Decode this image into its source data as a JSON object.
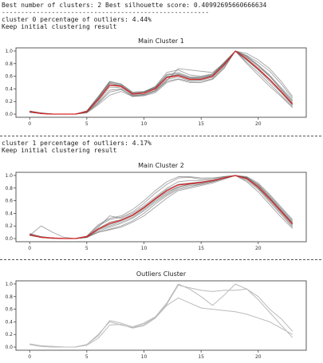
{
  "output": {
    "line1": "Best number of clusters: 2 Best silhouette score: 0.40992695660666634",
    "line2": "------------------------------------------------------",
    "line3": "cluster 0 percentage of outliers: 4.44%",
    "line4": "Keep initial clustering result",
    "line5": "cluster 1 percentage of outliers: 4.17%",
    "line6": "Keep initial clustering result"
  },
  "colors": {
    "member_line": "#555555",
    "mean_line": "#d62728",
    "outlier_line": "#bbbbbb",
    "axis": "#333333"
  },
  "chart_data": [
    {
      "type": "line",
      "title": "Main Cluster 1",
      "x": [
        0,
        1,
        2,
        3,
        4,
        5,
        6,
        7,
        8,
        9,
        10,
        11,
        12,
        13,
        14,
        15,
        16,
        17,
        18,
        19,
        20,
        21,
        22,
        23
      ],
      "xticks": [
        0,
        5,
        10,
        15,
        20
      ],
      "yticks": [
        "0.0",
        "0.2",
        "0.4",
        "0.6",
        "0.8",
        "1.0"
      ],
      "xlim": [
        -1.2,
        24.2
      ],
      "ylim": [
        -0.05,
        1.05
      ],
      "series": [
        {
          "role": "member",
          "values": [
            0.04,
            0.01,
            0.0,
            0.0,
            0.0,
            0.05,
            0.28,
            0.52,
            0.48,
            0.35,
            0.36,
            0.43,
            0.62,
            0.64,
            0.58,
            0.58,
            0.62,
            0.8,
            1.0,
            0.9,
            0.75,
            0.6,
            0.4,
            0.2
          ]
        },
        {
          "role": "member",
          "values": [
            0.03,
            0.01,
            0.0,
            0.0,
            0.0,
            0.03,
            0.2,
            0.43,
            0.42,
            0.3,
            0.31,
            0.38,
            0.55,
            0.59,
            0.53,
            0.54,
            0.58,
            0.76,
            1.0,
            0.82,
            0.66,
            0.48,
            0.3,
            0.12
          ]
        },
        {
          "role": "member",
          "values": [
            0.05,
            0.02,
            0.0,
            0.0,
            0.0,
            0.04,
            0.25,
            0.5,
            0.44,
            0.32,
            0.34,
            0.42,
            0.6,
            0.62,
            0.56,
            0.56,
            0.61,
            0.79,
            1.0,
            0.92,
            0.78,
            0.62,
            0.42,
            0.22
          ]
        },
        {
          "role": "member",
          "values": [
            0.04,
            0.01,
            0.0,
            0.0,
            0.0,
            0.03,
            0.18,
            0.38,
            0.4,
            0.28,
            0.3,
            0.36,
            0.52,
            0.56,
            0.52,
            0.52,
            0.56,
            0.74,
            1.0,
            0.8,
            0.62,
            0.44,
            0.28,
            0.1
          ]
        },
        {
          "role": "member",
          "values": [
            0.03,
            0.01,
            0.0,
            0.0,
            0.0,
            0.04,
            0.22,
            0.46,
            0.44,
            0.31,
            0.33,
            0.4,
            0.58,
            0.61,
            0.55,
            0.55,
            0.6,
            0.78,
            1.0,
            0.88,
            0.72,
            0.55,
            0.36,
            0.16
          ]
        },
        {
          "role": "member",
          "values": [
            0.04,
            0.02,
            0.0,
            0.0,
            0.0,
            0.05,
            0.26,
            0.49,
            0.46,
            0.33,
            0.35,
            0.44,
            0.66,
            0.7,
            0.62,
            0.6,
            0.64,
            0.82,
            1.0,
            0.93,
            0.82,
            0.68,
            0.48,
            0.25
          ]
        },
        {
          "role": "member",
          "values": [
            0.03,
            0.01,
            0.0,
            0.0,
            0.0,
            0.02,
            0.15,
            0.3,
            0.36,
            0.28,
            0.29,
            0.34,
            0.5,
            0.55,
            0.5,
            0.5,
            0.55,
            0.72,
            1.0,
            0.85,
            0.7,
            0.52,
            0.34,
            0.14
          ]
        },
        {
          "role": "member",
          "values": [
            0.04,
            0.01,
            0.0,
            0.0,
            0.0,
            0.04,
            0.24,
            0.47,
            0.45,
            0.32,
            0.33,
            0.41,
            0.59,
            0.63,
            0.57,
            0.57,
            0.61,
            0.78,
            1.0,
            0.86,
            0.7,
            0.54,
            0.35,
            0.15
          ]
        },
        {
          "role": "member",
          "values": [
            0.05,
            0.01,
            0.0,
            0.0,
            0.0,
            0.05,
            0.27,
            0.51,
            0.47,
            0.34,
            0.35,
            0.42,
            0.63,
            0.66,
            0.59,
            0.59,
            0.63,
            0.81,
            1.0,
            0.91,
            0.77,
            0.6,
            0.39,
            0.18
          ]
        },
        {
          "role": "member",
          "values": [
            0.03,
            0.01,
            0.0,
            0.0,
            0.0,
            0.03,
            0.17,
            0.35,
            0.39,
            0.29,
            0.31,
            0.37,
            0.53,
            0.72,
            0.7,
            0.68,
            0.66,
            0.8,
            1.0,
            0.96,
            0.86,
            0.72,
            0.52,
            0.28
          ]
        },
        {
          "role": "mean",
          "values": [
            0.04,
            0.01,
            0.0,
            0.0,
            0.0,
            0.04,
            0.23,
            0.46,
            0.44,
            0.32,
            0.33,
            0.4,
            0.58,
            0.61,
            0.55,
            0.55,
            0.6,
            0.78,
            1.0,
            0.87,
            0.72,
            0.55,
            0.36,
            0.16
          ]
        }
      ]
    },
    {
      "type": "line",
      "title": "Main Cluster 2",
      "x": [
        0,
        1,
        2,
        3,
        4,
        5,
        6,
        7,
        8,
        9,
        10,
        11,
        12,
        13,
        14,
        15,
        16,
        17,
        18,
        19,
        20,
        21,
        22,
        23
      ],
      "xticks": [
        0,
        5,
        10,
        15,
        20
      ],
      "yticks": [
        "0.0",
        "0.2",
        "0.4",
        "0.6",
        "0.8",
        "1.0"
      ],
      "xlim": [
        -1.2,
        24.2
      ],
      "ylim": [
        -0.05,
        1.05
      ],
      "series": [
        {
          "role": "member",
          "values": [
            0.06,
            0.02,
            0.01,
            0.0,
            0.0,
            0.03,
            0.15,
            0.22,
            0.28,
            0.36,
            0.48,
            0.62,
            0.74,
            0.82,
            0.86,
            0.88,
            0.92,
            0.96,
            1.0,
            0.97,
            0.85,
            0.65,
            0.45,
            0.25
          ]
        },
        {
          "role": "member",
          "values": [
            0.08,
            0.03,
            0.01,
            0.0,
            0.0,
            0.02,
            0.12,
            0.18,
            0.24,
            0.32,
            0.44,
            0.58,
            0.7,
            0.8,
            0.84,
            0.86,
            0.9,
            0.95,
            1.0,
            0.95,
            0.8,
            0.6,
            0.4,
            0.2
          ]
        },
        {
          "role": "member",
          "values": [
            0.05,
            0.2,
            0.1,
            0.02,
            0.0,
            0.02,
            0.1,
            0.15,
            0.2,
            0.28,
            0.4,
            0.55,
            0.68,
            0.78,
            0.82,
            0.86,
            0.9,
            0.96,
            1.0,
            0.96,
            0.84,
            0.66,
            0.46,
            0.26
          ]
        },
        {
          "role": "member",
          "values": [
            0.07,
            0.02,
            0.01,
            0.0,
            0.0,
            0.04,
            0.2,
            0.3,
            0.34,
            0.42,
            0.56,
            0.72,
            0.86,
            0.96,
            0.97,
            0.94,
            0.95,
            0.98,
            1.0,
            0.92,
            0.78,
            0.58,
            0.38,
            0.18
          ]
        },
        {
          "role": "member",
          "values": [
            0.06,
            0.03,
            0.01,
            0.0,
            0.0,
            0.03,
            0.18,
            0.36,
            0.32,
            0.4,
            0.52,
            0.66,
            0.8,
            0.9,
            0.92,
            0.92,
            0.93,
            0.97,
            1.0,
            0.94,
            0.8,
            0.62,
            0.42,
            0.22
          ]
        },
        {
          "role": "member",
          "values": [
            0.05,
            0.02,
            0.0,
            0.0,
            0.0,
            0.02,
            0.1,
            0.14,
            0.18,
            0.26,
            0.36,
            0.5,
            0.64,
            0.76,
            0.8,
            0.84,
            0.88,
            0.94,
            1.0,
            0.98,
            0.88,
            0.7,
            0.5,
            0.3
          ]
        },
        {
          "role": "member",
          "values": [
            0.06,
            0.02,
            0.01,
            0.0,
            0.0,
            0.03,
            0.16,
            0.26,
            0.3,
            0.38,
            0.5,
            0.64,
            0.78,
            0.86,
            0.88,
            0.9,
            0.92,
            0.96,
            1.0,
            0.96,
            0.82,
            0.64,
            0.44,
            0.24
          ]
        },
        {
          "role": "member",
          "values": [
            0.07,
            0.03,
            0.01,
            0.0,
            0.0,
            0.04,
            0.22,
            0.32,
            0.36,
            0.46,
            0.6,
            0.76,
            0.9,
            0.98,
            0.98,
            0.96,
            0.96,
            0.98,
            1.0,
            0.9,
            0.74,
            0.54,
            0.34,
            0.16
          ]
        },
        {
          "role": "member",
          "values": [
            0.05,
            0.02,
            0.01,
            0.0,
            0.0,
            0.02,
            0.14,
            0.2,
            0.26,
            0.34,
            0.46,
            0.6,
            0.72,
            0.82,
            0.86,
            0.88,
            0.91,
            0.96,
            1.0,
            0.97,
            0.86,
            0.68,
            0.48,
            0.28
          ]
        },
        {
          "role": "mean",
          "values": [
            0.06,
            0.02,
            0.01,
            0.0,
            0.0,
            0.03,
            0.15,
            0.24,
            0.29,
            0.37,
            0.49,
            0.63,
            0.76,
            0.85,
            0.87,
            0.89,
            0.92,
            0.96,
            1.0,
            0.95,
            0.82,
            0.63,
            0.43,
            0.23
          ]
        }
      ]
    },
    {
      "type": "line",
      "title": "Outliers Cluster",
      "x": [
        0,
        1,
        2,
        3,
        4,
        5,
        6,
        7,
        8,
        9,
        10,
        11,
        12,
        13,
        14,
        15,
        16,
        17,
        18,
        19,
        20,
        21,
        22,
        23
      ],
      "xticks": [
        0,
        5,
        10,
        15,
        20
      ],
      "yticks": [
        "0.0",
        "0.2",
        "0.4",
        "0.6",
        "0.8",
        "1.0"
      ],
      "xlim": [
        -1.2,
        24.2
      ],
      "ylim": [
        -0.05,
        1.05
      ],
      "series": [
        {
          "role": "outlier",
          "values": [
            0.05,
            0.02,
            0.01,
            0.0,
            0.0,
            0.04,
            0.18,
            0.42,
            0.38,
            0.32,
            0.38,
            0.48,
            0.7,
            1.0,
            0.92,
            0.8,
            0.66,
            0.82,
            1.0,
            0.92,
            0.75,
            0.55,
            0.35,
            0.15
          ]
        },
        {
          "role": "outlier",
          "values": [
            0.04,
            0.01,
            0.0,
            0.0,
            0.0,
            0.03,
            0.14,
            0.35,
            0.36,
            0.3,
            0.34,
            0.46,
            0.66,
            0.78,
            0.7,
            0.62,
            0.6,
            0.58,
            0.56,
            0.52,
            0.46,
            0.4,
            0.3,
            0.2
          ]
        },
        {
          "role": "outlier",
          "values": [
            0.05,
            0.02,
            0.01,
            0.0,
            0.0,
            0.04,
            0.2,
            0.4,
            0.35,
            0.31,
            0.36,
            0.47,
            0.68,
            0.98,
            0.94,
            0.9,
            0.88,
            0.9,
            0.9,
            0.92,
            0.8,
            0.6,
            0.45,
            0.25
          ]
        }
      ]
    }
  ]
}
